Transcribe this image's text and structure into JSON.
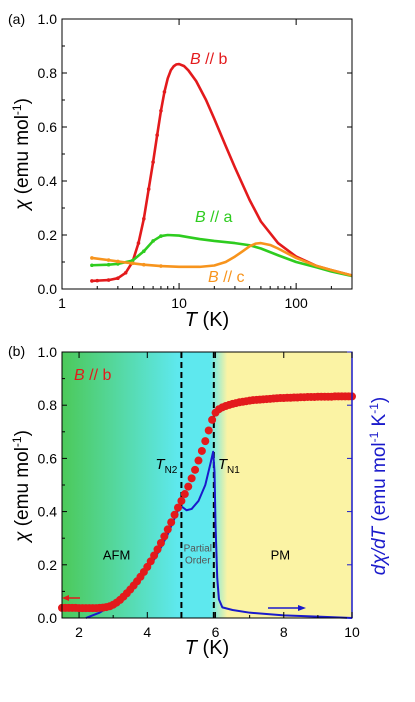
{
  "chart_data": [
    {
      "panel_label": "(a)",
      "type": "line",
      "xlabel": "T (K)",
      "xlabel_var": "T",
      "xlabel_unit": "(K)",
      "ylabel": "χ (emu mol-1)",
      "ylabel_var": "χ",
      "ylabel_unit": "(emu mol",
      "ylabel_exp": "-1",
      "ylabel_close": ")",
      "x_scale": "log",
      "xlim": [
        1,
        300
      ],
      "ylim": [
        0,
        1.0
      ],
      "xtick_values": [
        1,
        10,
        100
      ],
      "xtick_labels": [
        "1",
        "10",
        "100"
      ],
      "ytick_labels": [
        "0.0",
        "0.2",
        "0.4",
        "0.6",
        "0.8",
        "1.0"
      ],
      "ytick_values": [
        0,
        0.2,
        0.4,
        0.6,
        0.8,
        1.0
      ],
      "series": [
        {
          "name": "B // b",
          "label_var": "B",
          "label_rest": " // b",
          "color": "#e31a1c",
          "points": [
            [
              1.8,
              0.03
            ],
            [
              2.0,
              0.031
            ],
            [
              2.5,
              0.033
            ],
            [
              3.0,
              0.04
            ],
            [
              3.5,
              0.06
            ],
            [
              4.0,
              0.1
            ],
            [
              4.5,
              0.17
            ],
            [
              5.0,
              0.26
            ],
            [
              5.5,
              0.37
            ],
            [
              6.0,
              0.47
            ],
            [
              6.5,
              0.57
            ],
            [
              7.0,
              0.66
            ],
            [
              7.5,
              0.73
            ],
            [
              8.0,
              0.78
            ],
            [
              8.5,
              0.81
            ],
            [
              9.0,
              0.825
            ],
            [
              9.5,
              0.832
            ],
            [
              10,
              0.833
            ],
            [
              11,
              0.826
            ],
            [
              12,
              0.81
            ],
            [
              14,
              0.77
            ],
            [
              17,
              0.7
            ],
            [
              20,
              0.63
            ],
            [
              25,
              0.53
            ],
            [
              30,
              0.45
            ],
            [
              40,
              0.33
            ],
            [
              50,
              0.25
            ],
            [
              70,
              0.17
            ],
            [
              100,
              0.12
            ],
            [
              150,
              0.085
            ],
            [
              200,
              0.07
            ],
            [
              300,
              0.05
            ]
          ]
        },
        {
          "name": "B // a",
          "label_var": "B",
          "label_rest": " // a",
          "color": "#2ecc1f",
          "points": [
            [
              1.8,
              0.088
            ],
            [
              2.5,
              0.09
            ],
            [
              3.0,
              0.093
            ],
            [
              4.0,
              0.105
            ],
            [
              5.0,
              0.14
            ],
            [
              6.0,
              0.178
            ],
            [
              7.0,
              0.196
            ],
            [
              8.0,
              0.2
            ],
            [
              10,
              0.198
            ],
            [
              12,
              0.192
            ],
            [
              15,
              0.185
            ],
            [
              20,
              0.178
            ],
            [
              30,
              0.17
            ],
            [
              40,
              0.162
            ],
            [
              50,
              0.15
            ],
            [
              70,
              0.125
            ],
            [
              100,
              0.1
            ],
            [
              150,
              0.08
            ],
            [
              200,
              0.065
            ],
            [
              300,
              0.048
            ]
          ]
        },
        {
          "name": "B // c",
          "label_var": "B",
          "label_rest": " // c",
          "color": "#f7941d",
          "points": [
            [
              1.8,
              0.115
            ],
            [
              2.5,
              0.107
            ],
            [
              3.0,
              0.102
            ],
            [
              4.0,
              0.095
            ],
            [
              5.0,
              0.09
            ],
            [
              7.0,
              0.085
            ],
            [
              10,
              0.082
            ],
            [
              15,
              0.082
            ],
            [
              20,
              0.087
            ],
            [
              25,
              0.1
            ],
            [
              30,
              0.12
            ],
            [
              35,
              0.14
            ],
            [
              40,
              0.158
            ],
            [
              45,
              0.168
            ],
            [
              50,
              0.17
            ],
            [
              60,
              0.163
            ],
            [
              70,
              0.15
            ],
            [
              100,
              0.115
            ],
            [
              150,
              0.085
            ],
            [
              200,
              0.07
            ],
            [
              300,
              0.05
            ]
          ]
        }
      ]
    },
    {
      "panel_label": "(b)",
      "type": "line",
      "title": "B // b",
      "title_var": "B",
      "title_rest": " // b",
      "xlabel": "T (K)",
      "xlabel_var": "T",
      "xlabel_unit": "(K)",
      "ylabel": "χ (emu mol-1)",
      "ylabel_var": "χ",
      "ylabel_unit": "(emu mol",
      "ylabel_exp": "-1",
      "ylabel_close": ")",
      "ylabel_right": "dχ/dT (emu mol-1 K-1)",
      "ylabel_right_var": "dχ/dT",
      "ylabel_right_unit1": "(emu mol",
      "ylabel_right_exp1": "-1",
      "ylabel_right_unit2": " K",
      "ylabel_right_exp2": "-1",
      "ylabel_right_close": ")",
      "xlim": [
        1.5,
        10
      ],
      "ylim": [
        0,
        1.0
      ],
      "xtick_values": [
        2,
        4,
        6,
        8,
        10
      ],
      "xtick_labels": [
        "2",
        "4",
        "6",
        "8",
        "10"
      ],
      "ytick_labels": [
        "0.0",
        "0.2",
        "0.4",
        "0.6",
        "0.8",
        "1.0"
      ],
      "ytick_values": [
        0,
        0.2,
        0.4,
        0.6,
        0.8,
        1.0
      ],
      "transitions": [
        {
          "label_main": "T",
          "label_sub": "N2",
          "x": 5.0
        },
        {
          "label_main": "T",
          "label_sub": "N1",
          "x": 5.95
        }
      ],
      "regions": [
        {
          "name": "AFM",
          "lines": [
            "AFM"
          ]
        },
        {
          "name": "Partial Order",
          "lines": [
            "Partial",
            "Order"
          ]
        },
        {
          "name": "PM",
          "lines": [
            "PM"
          ]
        }
      ],
      "colors": {
        "afm": "#4cc95a",
        "cyan": "#5ee8ee",
        "pm": "#fbf3a4",
        "chi": "#e31a1c",
        "dchi": "#1a1acb"
      },
      "series": [
        {
          "name": "χ",
          "color": "#e31a1c",
          "points": [
            [
              1.5,
              0.038
            ],
            [
              1.6,
              0.038
            ],
            [
              1.7,
              0.038
            ],
            [
              1.8,
              0.038
            ],
            [
              1.9,
              0.038
            ],
            [
              2.0,
              0.037
            ],
            [
              2.1,
              0.037
            ],
            [
              2.2,
              0.037
            ],
            [
              2.3,
              0.037
            ],
            [
              2.4,
              0.037
            ],
            [
              2.5,
              0.037
            ],
            [
              2.6,
              0.038
            ],
            [
              2.7,
              0.039
            ],
            [
              2.8,
              0.041
            ],
            [
              2.9,
              0.044
            ],
            [
              3.0,
              0.05
            ],
            [
              3.1,
              0.058
            ],
            [
              3.2,
              0.068
            ],
            [
              3.3,
              0.08
            ],
            [
              3.4,
              0.093
            ],
            [
              3.5,
              0.107
            ],
            [
              3.6,
              0.122
            ],
            [
              3.7,
              0.138
            ],
            [
              3.8,
              0.155
            ],
            [
              3.9,
              0.173
            ],
            [
              4.0,
              0.192
            ],
            [
              4.1,
              0.213
            ],
            [
              4.2,
              0.235
            ],
            [
              4.3,
              0.258
            ],
            [
              4.4,
              0.282
            ],
            [
              4.5,
              0.307
            ],
            [
              4.6,
              0.333
            ],
            [
              4.7,
              0.36
            ],
            [
              4.8,
              0.388
            ],
            [
              4.9,
              0.415
            ],
            [
              5.0,
              0.44
            ],
            [
              5.1,
              0.466
            ],
            [
              5.2,
              0.494
            ],
            [
              5.3,
              0.525
            ],
            [
              5.4,
              0.557
            ],
            [
              5.5,
              0.592
            ],
            [
              5.6,
              0.628
            ],
            [
              5.7,
              0.665
            ],
            [
              5.8,
              0.705
            ],
            [
              5.9,
              0.745
            ],
            [
              6.0,
              0.772
            ],
            [
              6.1,
              0.785
            ],
            [
              6.2,
              0.792
            ],
            [
              6.3,
              0.797
            ],
            [
              6.4,
              0.801
            ],
            [
              6.5,
              0.805
            ],
            [
              6.6,
              0.808
            ],
            [
              6.7,
              0.811
            ],
            [
              6.8,
              0.813
            ],
            [
              6.9,
              0.815
            ],
            [
              7.0,
              0.817
            ],
            [
              7.1,
              0.819
            ],
            [
              7.2,
              0.82
            ],
            [
              7.3,
              0.821
            ],
            [
              7.4,
              0.822
            ],
            [
              7.5,
              0.823
            ],
            [
              7.6,
              0.824
            ],
            [
              7.7,
              0.825
            ],
            [
              7.8,
              0.826
            ],
            [
              7.9,
              0.827
            ],
            [
              8.0,
              0.827
            ],
            [
              8.1,
              0.828
            ],
            [
              8.2,
              0.828
            ],
            [
              8.3,
              0.829
            ],
            [
              8.4,
              0.829
            ],
            [
              8.5,
              0.83
            ],
            [
              8.6,
              0.83
            ],
            [
              8.7,
              0.831
            ],
            [
              8.8,
              0.831
            ],
            [
              8.9,
              0.831
            ],
            [
              9.0,
              0.832
            ],
            [
              9.1,
              0.832
            ],
            [
              9.2,
              0.832
            ],
            [
              9.3,
              0.832
            ],
            [
              9.4,
              0.832
            ],
            [
              9.5,
              0.833
            ],
            [
              9.6,
              0.833
            ],
            [
              9.7,
              0.833
            ],
            [
              9.8,
              0.833
            ],
            [
              9.9,
              0.833
            ],
            [
              10.0,
              0.833
            ]
          ]
        },
        {
          "name": "dχ/dT",
          "color": "#1a1acb",
          "points": [
            [
              2.2,
              0.0
            ],
            [
              2.4,
              0.01
            ],
            [
              2.6,
              0.02
            ],
            [
              2.8,
              0.035
            ],
            [
              3.0,
              0.055
            ],
            [
              3.2,
              0.075
            ],
            [
              3.4,
              0.1
            ],
            [
              3.6,
              0.125
            ],
            [
              3.8,
              0.155
            ],
            [
              4.0,
              0.185
            ],
            [
              4.2,
              0.22
            ],
            [
              4.4,
              0.265
            ],
            [
              4.6,
              0.315
            ],
            [
              4.8,
              0.375
            ],
            [
              4.95,
              0.42
            ],
            [
              5.05,
              0.415
            ],
            [
              5.15,
              0.405
            ],
            [
              5.3,
              0.41
            ],
            [
              5.5,
              0.44
            ],
            [
              5.7,
              0.5
            ],
            [
              5.85,
              0.58
            ],
            [
              5.93,
              0.625
            ],
            [
              5.97,
              0.55
            ],
            [
              6.0,
              0.35
            ],
            [
              6.05,
              0.15
            ],
            [
              6.1,
              0.07
            ],
            [
              6.2,
              0.04
            ],
            [
              6.5,
              0.03
            ],
            [
              7.0,
              0.02
            ],
            [
              8.0,
              0.01
            ],
            [
              9.0,
              0.005
            ],
            [
              10.0,
              0.0
            ]
          ]
        }
      ]
    }
  ]
}
